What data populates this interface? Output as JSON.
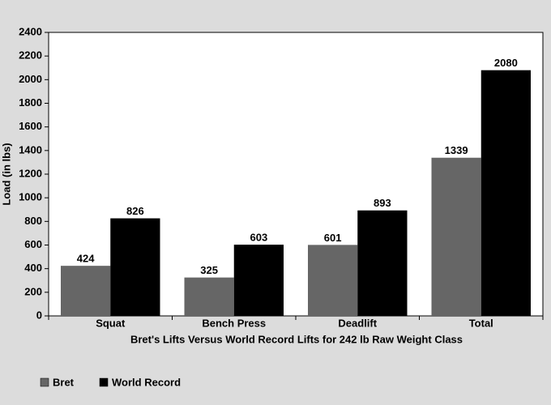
{
  "chart_data": {
    "type": "bar",
    "x_label": "Bret's Lifts Versus World Record Lifts for 242 lb Raw Weight Class",
    "y_label": "Load (in lbs)",
    "categories": [
      "Squat",
      "Bench Press",
      "Deadlift",
      "Total"
    ],
    "series": [
      {
        "name": "Bret",
        "color": "#666666",
        "values": [
          424,
          325,
          601,
          1339
        ]
      },
      {
        "name": "World Record",
        "color": "#000000",
        "values": [
          826,
          603,
          893,
          2080
        ]
      }
    ],
    "ylim": [
      0,
      2400
    ],
    "yticks": [
      0,
      200,
      400,
      600,
      800,
      1000,
      1200,
      1400,
      1600,
      1800,
      2000,
      2200,
      2400
    ],
    "grid": false,
    "legend": "bottom-left",
    "data_labels": true
  }
}
